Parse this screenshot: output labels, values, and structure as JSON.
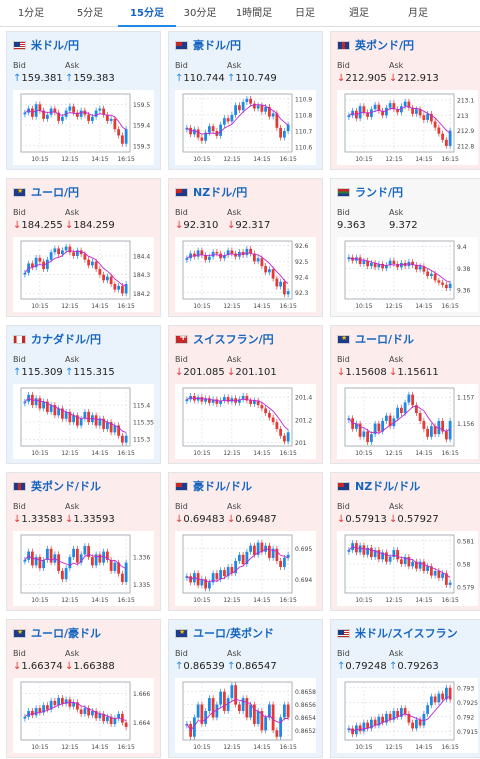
{
  "tabs": [
    {
      "label": "1分足",
      "width": 62,
      "active": false
    },
    {
      "label": "5分足",
      "width": 56,
      "active": false
    },
    {
      "label": "15分足",
      "width": 58,
      "active": true
    },
    {
      "label": "30分足",
      "width": 48,
      "active": false
    },
    {
      "label": "1時間足",
      "width": 60,
      "active": false
    },
    {
      "label": "日足",
      "width": 42,
      "active": false
    },
    {
      "label": "週足",
      "width": 66,
      "active": false
    },
    {
      "label": "月足",
      "width": 52,
      "active": false
    }
  ],
  "labels": {
    "bid": "Bid",
    "ask": "Ask"
  },
  "colors": {
    "up": "#1e88e5",
    "down": "#e53935",
    "ma": "#c026d3",
    "grid": "#d7dbe0",
    "accent": "#1565c0"
  },
  "x_ticks": [
    "10:15",
    "12:15",
    "14:15",
    "16:15"
  ],
  "cards": [
    {
      "flag": "us-flag-icon",
      "pair": "米ドル/円",
      "trend": "up",
      "bid": "159.381",
      "ask": "159.383",
      "y_ticks": [
        "159.5",
        "159.4",
        "159.3"
      ],
      "y_range": [
        159.27,
        159.55
      ],
      "series": [
        159.46,
        159.48,
        159.44,
        159.5,
        159.47,
        159.43,
        159.45,
        159.48,
        159.46,
        159.42,
        159.44,
        159.47,
        159.49,
        159.46,
        159.44,
        159.47,
        159.45,
        159.42,
        159.44,
        159.47,
        159.48,
        159.45,
        159.42,
        159.43,
        159.38,
        159.35,
        159.31,
        159.38
      ]
    },
    {
      "flag": "au-flag-icon",
      "pair": "豪ドル/円",
      "trend": "up",
      "bid": "110.744",
      "ask": "110.749",
      "y_ticks": [
        "110.9",
        "110.8",
        "110.7",
        "110.6"
      ],
      "y_range": [
        110.57,
        110.93
      ],
      "series": [
        110.72,
        110.68,
        110.71,
        110.66,
        110.64,
        110.69,
        110.73,
        110.7,
        110.67,
        110.74,
        110.78,
        110.76,
        110.8,
        110.86,
        110.83,
        110.88,
        110.9,
        110.87,
        110.84,
        110.86,
        110.82,
        110.85,
        110.79,
        110.81,
        110.72,
        110.66,
        110.7,
        110.74
      ]
    },
    {
      "flag": "gb-flag-icon",
      "pair": "英ポンド/円",
      "trend": "down",
      "bid": "212.905",
      "ask": "212.913",
      "y_ticks": [
        "213.1",
        "213",
        "212.9",
        "212.8"
      ],
      "y_range": [
        212.76,
        213.14
      ],
      "series": [
        213.0,
        213.03,
        212.98,
        213.06,
        213.02,
        212.99,
        213.04,
        213.07,
        213.03,
        213.0,
        213.05,
        213.08,
        213.04,
        213.02,
        213.06,
        213.09,
        213.05,
        213.01,
        213.04,
        213.0,
        212.97,
        213.01,
        212.96,
        212.92,
        212.88,
        212.84,
        212.8,
        212.9
      ]
    },
    {
      "flag": "eu-flag-icon",
      "pair": "ユーロ/円",
      "trend": "down",
      "bid": "184.255",
      "ask": "184.259",
      "y_ticks": [
        "184.4",
        "184.3",
        "184.2"
      ],
      "y_range": [
        184.17,
        184.48
      ],
      "series": [
        184.31,
        184.36,
        184.34,
        184.39,
        184.37,
        184.33,
        184.38,
        184.42,
        184.44,
        184.41,
        184.43,
        184.45,
        184.42,
        184.4,
        184.43,
        184.41,
        184.38,
        184.35,
        184.37,
        184.33,
        184.3,
        184.27,
        184.29,
        184.25,
        184.22,
        184.24,
        184.2,
        184.25
      ]
    },
    {
      "flag": "nz-flag-icon",
      "pair": "NZドル/円",
      "trend": "down",
      "bid": "92.310",
      "ask": "92.317",
      "y_ticks": [
        "92.6",
        "92.5",
        "92.4",
        "92.3"
      ],
      "y_range": [
        92.26,
        92.63
      ],
      "series": [
        92.52,
        92.55,
        92.53,
        92.57,
        92.54,
        92.51,
        92.53,
        92.56,
        92.55,
        92.52,
        92.54,
        92.57,
        92.55,
        92.53,
        92.56,
        92.54,
        92.58,
        92.55,
        92.5,
        92.52,
        92.47,
        92.43,
        92.45,
        92.39,
        92.34,
        92.37,
        92.29,
        92.31
      ]
    },
    {
      "flag": "za-flag-icon",
      "pair": "ランド/円",
      "trend": "flat",
      "bid": "9.363",
      "ask": "9.372",
      "y_ticks": [
        "9.4",
        "9.38",
        "9.36"
      ],
      "y_range": [
        9.352,
        9.405
      ],
      "series": [
        9.39,
        9.387,
        9.39,
        9.384,
        9.387,
        9.382,
        9.385,
        9.381,
        9.384,
        9.38,
        9.383,
        9.387,
        9.384,
        9.381,
        9.385,
        9.382,
        9.386,
        9.383,
        9.379,
        9.382,
        9.377,
        9.373,
        9.375,
        9.369,
        9.367,
        9.365,
        9.362,
        9.366
      ]
    },
    {
      "flag": "ca-flag-icon",
      "pair": "カナダドル/円",
      "trend": "up",
      "bid": "115.309",
      "ask": "115.315",
      "y_ticks": [
        "115.4",
        "115.35",
        "115.3"
      ],
      "y_range": [
        115.28,
        115.45
      ],
      "series": [
        115.41,
        115.43,
        115.4,
        115.42,
        115.39,
        115.41,
        115.38,
        115.4,
        115.37,
        115.39,
        115.36,
        115.38,
        115.35,
        115.37,
        115.34,
        115.36,
        115.38,
        115.35,
        115.37,
        115.34,
        115.36,
        115.33,
        115.35,
        115.32,
        115.34,
        115.31,
        115.29,
        115.31
      ]
    },
    {
      "flag": "ch-flag-icon",
      "pair": "スイスフラン/円",
      "trend": "down",
      "bid": "201.085",
      "ask": "201.101",
      "y_ticks": [
        "201.4",
        "201.2",
        "201"
      ],
      "y_range": [
        200.97,
        201.48
      ],
      "series": [
        201.38,
        201.41,
        201.37,
        201.4,
        201.36,
        201.39,
        201.35,
        201.38,
        201.34,
        201.37,
        201.4,
        201.36,
        201.39,
        201.35,
        201.38,
        201.41,
        201.37,
        201.34,
        201.37,
        201.33,
        201.3,
        201.26,
        201.22,
        201.18,
        201.12,
        201.06,
        201.01,
        201.09
      ]
    },
    {
      "flag": "eu-flag-icon",
      "pair": "ユーロ/ドル",
      "trend": "down",
      "bid": "1.15608",
      "ask": "1.15611",
      "y_ticks": [
        "1.157",
        "1.156"
      ],
      "y_range": [
        1.15515,
        1.15735
      ],
      "series": [
        1.1562,
        1.1558,
        1.156,
        1.1555,
        1.1557,
        1.1553,
        1.1556,
        1.156,
        1.1557,
        1.1561,
        1.1563,
        1.1559,
        1.1562,
        1.1566,
        1.1564,
        1.1568,
        1.1571,
        1.1567,
        1.1564,
        1.1561,
        1.1558,
        1.1555,
        1.1559,
        1.1556,
        1.1561,
        1.1557,
        1.1554,
        1.1561
      ]
    },
    {
      "flag": "gb-flag-icon",
      "pair": "英ポンド/ドル",
      "trend": "down",
      "bid": "1.33583",
      "ask": "1.33593",
      "y_ticks": [
        "1.336",
        "1.335"
      ],
      "y_range": [
        1.3347,
        1.3368
      ],
      "series": [
        1.3359,
        1.3362,
        1.3357,
        1.336,
        1.3356,
        1.3359,
        1.3363,
        1.3358,
        1.3361,
        1.3355,
        1.3352,
        1.3356,
        1.336,
        1.3363,
        1.3358,
        1.3361,
        1.3364,
        1.336,
        1.3357,
        1.3361,
        1.3358,
        1.3362,
        1.3359,
        1.3355,
        1.3358,
        1.3354,
        1.3351,
        1.3358
      ]
    },
    {
      "flag": "au-flag-icon",
      "pair": "豪ドル/ドル",
      "trend": "down",
      "bid": "0.69483",
      "ask": "0.69487",
      "y_ticks": [
        "0.695",
        "0.694"
      ],
      "y_range": [
        0.69355,
        0.69545
      ],
      "series": [
        0.6941,
        0.6939,
        0.6942,
        0.6938,
        0.694,
        0.6937,
        0.6939,
        0.6942,
        0.694,
        0.6943,
        0.6941,
        0.6944,
        0.6942,
        0.6946,
        0.6948,
        0.6945,
        0.6949,
        0.6951,
        0.6948,
        0.6952,
        0.6949,
        0.6951,
        0.6947,
        0.695,
        0.6946,
        0.6944,
        0.6947,
        0.6948
      ]
    },
    {
      "flag": "nz-flag-icon",
      "pair": "NZドル/ドル",
      "trend": "down",
      "bid": "0.57913",
      "ask": "0.57927",
      "y_ticks": [
        "0.581",
        "0.58",
        "0.579"
      ],
      "y_range": [
        0.57875,
        0.58125
      ],
      "series": [
        0.5806,
        0.5809,
        0.5805,
        0.5808,
        0.5804,
        0.5807,
        0.5803,
        0.5806,
        0.5802,
        0.5805,
        0.5801,
        0.5803,
        0.5806,
        0.5802,
        0.58,
        0.5803,
        0.5799,
        0.5801,
        0.5798,
        0.5801,
        0.5797,
        0.5799,
        0.5795,
        0.5797,
        0.5794,
        0.5796,
        0.5791,
        0.5792
      ]
    },
    {
      "flag": "eu-flag-icon",
      "pair": "ユーロ/豪ドル",
      "trend": "down",
      "bid": "1.66374",
      "ask": "1.66388",
      "y_ticks": [
        "1.666",
        "1.664"
      ],
      "y_range": [
        1.6628,
        1.6668
      ],
      "series": [
        1.6644,
        1.6648,
        1.6645,
        1.665,
        1.6647,
        1.6652,
        1.6649,
        1.6655,
        1.6652,
        1.6657,
        1.6653,
        1.6656,
        1.6651,
        1.6654,
        1.6649,
        1.6646,
        1.665,
        1.6645,
        1.6648,
        1.6643,
        1.6646,
        1.6641,
        1.6644,
        1.6639,
        1.6643,
        1.6646,
        1.664,
        1.6637
      ]
    },
    {
      "flag": "eu-flag-icon",
      "pair": "ユーロ/英ポンド",
      "trend": "up",
      "bid": "0.86539",
      "ask": "0.86547",
      "y_ticks": [
        "0.8658",
        "0.8656",
        "0.8654",
        "0.8652"
      ],
      "y_range": [
        0.86505,
        0.86595
      ],
      "series": [
        0.8653,
        0.8651,
        0.8654,
        0.8656,
        0.8653,
        0.8655,
        0.8657,
        0.8654,
        0.8656,
        0.8658,
        0.8655,
        0.8657,
        0.8659,
        0.8656,
        0.8655,
        0.8657,
        0.8654,
        0.8656,
        0.8653,
        0.8655,
        0.8652,
        0.8654,
        0.8656,
        0.8652,
        0.8651,
        0.8654,
        0.8656,
        0.8654
      ]
    },
    {
      "flag": "us-flag-icon",
      "pair": "米ドル/スイスフラン",
      "trend": "up",
      "bid": "0.79248",
      "ask": "0.79263",
      "y_ticks": [
        "0.793",
        "0.7925",
        "0.792",
        "0.7915"
      ],
      "y_range": [
        0.7912,
        0.7932
      ],
      "series": [
        0.7916,
        0.7914,
        0.7917,
        0.7915,
        0.7918,
        0.7916,
        0.7919,
        0.7917,
        0.792,
        0.7918,
        0.7921,
        0.7919,
        0.7922,
        0.792,
        0.7923,
        0.7921,
        0.7918,
        0.7916,
        0.7919,
        0.7917,
        0.7921,
        0.7924,
        0.7927,
        0.7925,
        0.7928,
        0.7926,
        0.793,
        0.7926
      ]
    }
  ]
}
